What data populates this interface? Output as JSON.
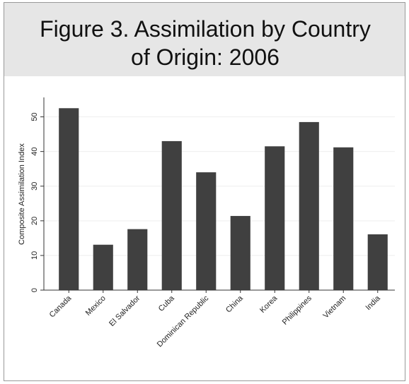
{
  "chart_data": {
    "type": "bar",
    "title": "Figure 3. Assimilation by Country of Origin: 2006",
    "y_label": "Composite Assimilation Index",
    "categories": [
      "Canada",
      "Mexico",
      "El Salvador",
      "Cuba",
      "Dominican Republic",
      "China",
      "Korea",
      "Philippines",
      "Vietnam",
      "India"
    ],
    "values": [
      52.5,
      13.1,
      17.6,
      43,
      34,
      21.4,
      41.5,
      48.5,
      41.2,
      16.1
    ],
    "color": "#404040",
    "ylim": [
      0,
      55
    ],
    "yticks": [
      0,
      10,
      20,
      30,
      40,
      50
    ],
    "grid": true
  }
}
